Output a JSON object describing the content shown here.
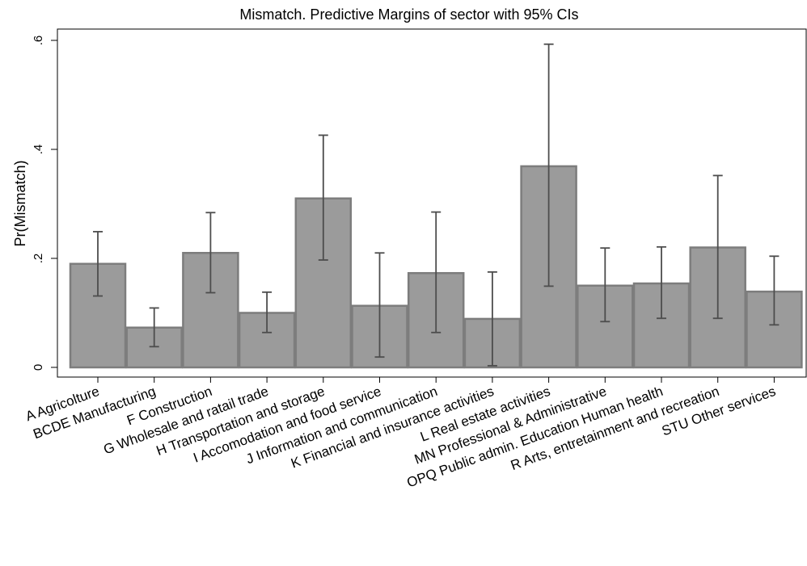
{
  "chart_data": {
    "type": "bar",
    "title": "Mismatch. Predictive Margins of sector with 95% CIs",
    "xlabel": "",
    "ylabel": "Pr(Mismatch)",
    "ylim": [
      0,
      0.6
    ],
    "yticks": [
      0,
      0.2,
      0.4,
      0.6
    ],
    "ytick_labels": [
      "0",
      ".2",
      ".4",
      ".6"
    ],
    "grid": false,
    "categories": [
      "A Agricolture",
      "BCDE Manufacturing",
      "F Construction",
      "G Wholesale and ratail trade",
      "H Transportation and storage",
      "I Accomodation and food service",
      "J Information and communication",
      "K Financial and insurance activities",
      "L Real estate activities",
      "MN Professional & Administrative",
      "OPQ Public admin. Education Human health",
      "R Arts, entretainment and recreation",
      "STU Other services"
    ],
    "values": [
      0.19,
      0.073,
      0.21,
      0.1,
      0.31,
      0.113,
      0.173,
      0.089,
      0.369,
      0.15,
      0.154,
      0.22,
      0.139
    ],
    "ci_lower": [
      0.131,
      0.038,
      0.137,
      0.064,
      0.197,
      0.019,
      0.064,
      0.003,
      0.149,
      0.084,
      0.09,
      0.09,
      0.078
    ],
    "ci_upper": [
      0.249,
      0.109,
      0.284,
      0.138,
      0.426,
      0.21,
      0.285,
      0.175,
      0.593,
      0.219,
      0.221,
      0.352,
      0.204
    ],
    "colors": {
      "bar_fill": "#9b9b9b",
      "bar_stroke": "#7d7d7d",
      "error_bar": "#4d4d4d",
      "axis": "#000000"
    }
  }
}
